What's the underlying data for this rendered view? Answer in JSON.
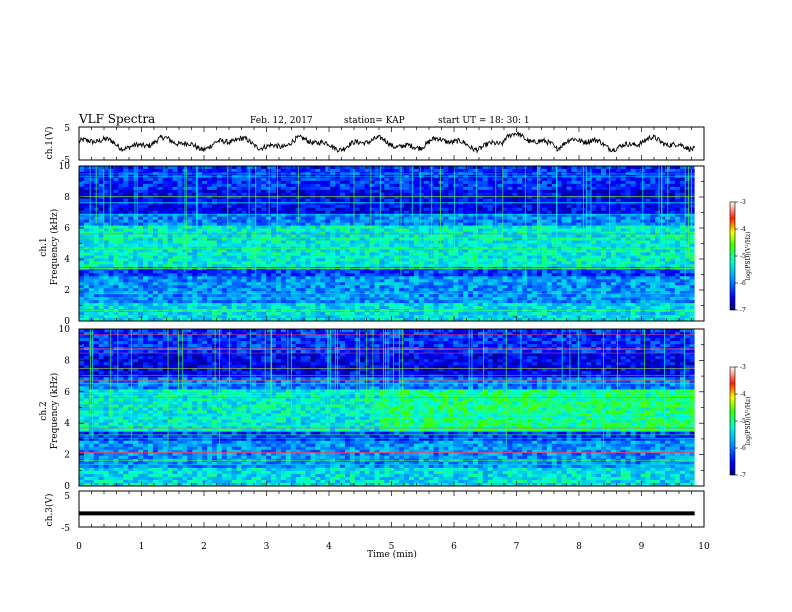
{
  "header": {
    "title": "VLF Spectra",
    "date": "Feb. 12, 2017",
    "station": "station= KAP",
    "start": "start  UT =   18: 30: 1"
  },
  "chart_data": [
    {
      "type": "line",
      "panel": "ch1-waveform",
      "ylabel": "ch.1(V)",
      "ylim": [
        -5,
        5
      ],
      "yticks": [
        "5",
        "-5"
      ],
      "xlim": [
        0,
        10
      ],
      "x_end": 9.85,
      "pattern": "noisy oscillation, amplitude ~2 V"
    },
    {
      "type": "heatmap",
      "panel": "ch1-spectrogram",
      "ylabel_top": "ch.1",
      "ylabel": "Frequency  (kHz)",
      "ylim": [
        0,
        10
      ],
      "yticks": [
        "0",
        "2",
        "4",
        "6",
        "8",
        "10"
      ],
      "xlim": [
        0,
        10
      ],
      "colorbar": {
        "label": "log(PSD)(V²/Hz)",
        "range": [
          -7,
          -3
        ],
        "ticks": [
          "-3",
          "-4",
          "-5",
          "-6",
          "-7"
        ]
      }
    },
    {
      "type": "heatmap",
      "panel": "ch2-spectrogram",
      "ylabel_top": "ch.2",
      "ylabel": "Frequency  (kHz)",
      "ylim": [
        0,
        10
      ],
      "yticks": [
        "0",
        "2",
        "4",
        "6",
        "8",
        "10"
      ],
      "xlim": [
        0,
        10
      ],
      "colorbar": {
        "label": "log(PSD)(V²/Hz)",
        "range": [
          -7,
          -3
        ],
        "ticks": [
          "-3",
          "-4",
          "-5",
          "-6",
          "-7"
        ]
      }
    },
    {
      "type": "line",
      "panel": "ch3-waveform",
      "ylabel": "ch.3(V)",
      "ylim": [
        -5,
        5
      ],
      "yticks": [
        "5",
        "-5"
      ],
      "xlim": [
        0,
        10
      ],
      "values": [
        -1.2
      ],
      "x_end": 9.85
    }
  ],
  "xaxis": {
    "label": "Time  (min)",
    "ticks": [
      "0",
      "1",
      "2",
      "3",
      "4",
      "5",
      "6",
      "7",
      "8",
      "9",
      "10"
    ]
  }
}
